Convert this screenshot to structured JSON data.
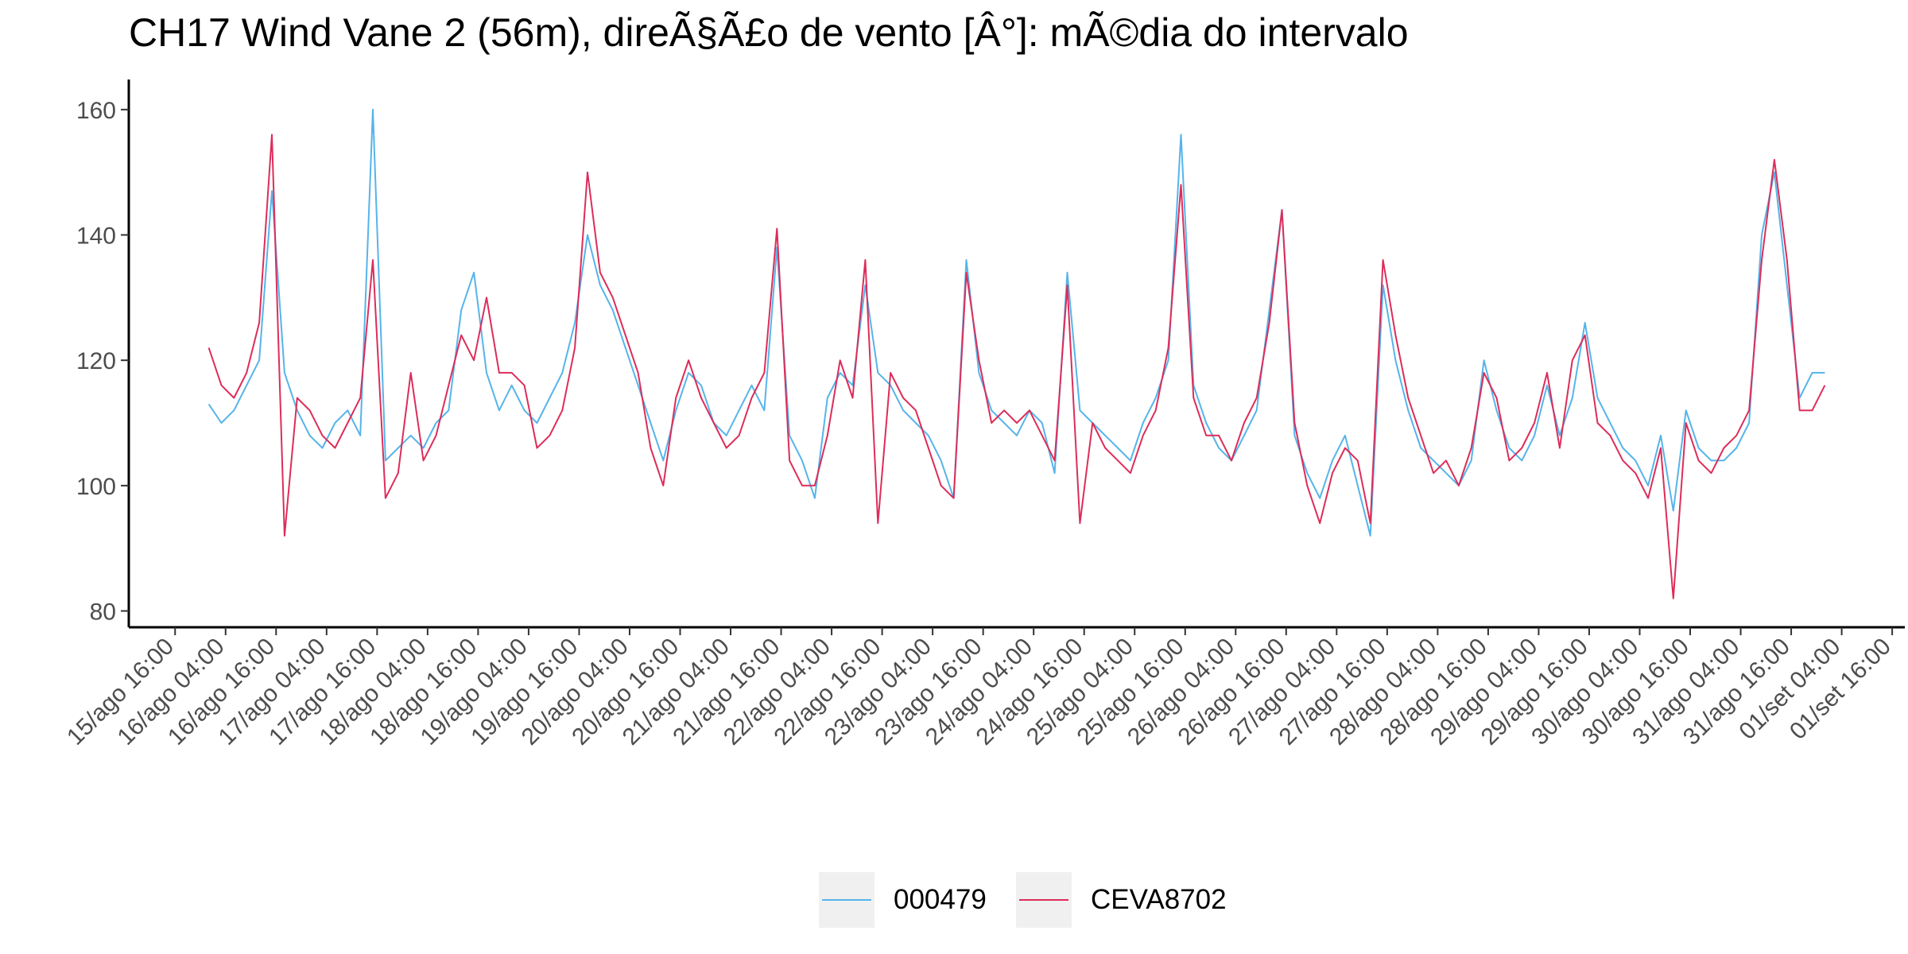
{
  "chart_data": {
    "type": "line",
    "title": "CH17 Wind Vane 2 (56m), direÃ§Ã£o de vento [Â°]: mÃ©dia do intervalo",
    "x": [
      "16/ago 00:00",
      "16/ago 03:00",
      "16/ago 06:00",
      "16/ago 09:00",
      "16/ago 12:00",
      "16/ago 15:00",
      "16/ago 18:00",
      "16/ago 21:00",
      "17/ago 00:00",
      "17/ago 03:00",
      "17/ago 06:00",
      "17/ago 09:00",
      "17/ago 12:00",
      "17/ago 15:00",
      "17/ago 18:00",
      "17/ago 21:00",
      "18/ago 00:00",
      "18/ago 03:00",
      "18/ago 06:00",
      "18/ago 09:00",
      "18/ago 12:00",
      "18/ago 15:00",
      "18/ago 18:00",
      "18/ago 21:00",
      "19/ago 00:00",
      "19/ago 03:00",
      "19/ago 06:00",
      "19/ago 09:00",
      "19/ago 12:00",
      "19/ago 15:00",
      "19/ago 18:00",
      "19/ago 21:00",
      "20/ago 00:00",
      "20/ago 03:00",
      "20/ago 06:00",
      "20/ago 09:00",
      "20/ago 12:00",
      "20/ago 15:00",
      "20/ago 18:00",
      "20/ago 21:00",
      "21/ago 00:00",
      "21/ago 03:00",
      "21/ago 06:00",
      "21/ago 09:00",
      "21/ago 12:00",
      "21/ago 15:00",
      "21/ago 18:00",
      "21/ago 21:00",
      "22/ago 00:00",
      "22/ago 03:00",
      "22/ago 06:00",
      "22/ago 09:00",
      "22/ago 12:00",
      "22/ago 15:00",
      "22/ago 18:00",
      "22/ago 21:00",
      "23/ago 00:00",
      "23/ago 03:00",
      "23/ago 06:00",
      "23/ago 09:00",
      "23/ago 12:00",
      "23/ago 15:00",
      "23/ago 18:00",
      "23/ago 21:00",
      "24/ago 00:00",
      "24/ago 03:00",
      "24/ago 06:00",
      "24/ago 09:00",
      "24/ago 12:00",
      "24/ago 15:00",
      "24/ago 18:00",
      "24/ago 21:00",
      "25/ago 00:00",
      "25/ago 03:00",
      "25/ago 06:00",
      "25/ago 09:00",
      "25/ago 12:00",
      "25/ago 15:00",
      "25/ago 18:00",
      "25/ago 21:00",
      "26/ago 00:00",
      "26/ago 03:00",
      "26/ago 06:00",
      "26/ago 09:00",
      "26/ago 12:00",
      "26/ago 15:00",
      "26/ago 18:00",
      "26/ago 21:00",
      "27/ago 00:00",
      "27/ago 03:00",
      "27/ago 06:00",
      "27/ago 09:00",
      "27/ago 12:00",
      "27/ago 15:00",
      "27/ago 18:00",
      "27/ago 21:00",
      "28/ago 00:00",
      "28/ago 03:00",
      "28/ago 06:00",
      "28/ago 09:00",
      "28/ago 12:00",
      "28/ago 15:00",
      "28/ago 18:00",
      "28/ago 21:00",
      "29/ago 00:00",
      "29/ago 03:00",
      "29/ago 06:00",
      "29/ago 09:00",
      "29/ago 12:00",
      "29/ago 15:00",
      "29/ago 18:00",
      "29/ago 21:00",
      "30/ago 00:00",
      "30/ago 03:00",
      "30/ago 06:00",
      "30/ago 09:00",
      "30/ago 12:00",
      "30/ago 15:00",
      "30/ago 18:00",
      "30/ago 21:00",
      "31/ago 00:00",
      "31/ago 03:00",
      "31/ago 06:00",
      "31/ago 09:00",
      "31/ago 12:00",
      "31/ago 15:00",
      "31/ago 18:00",
      "31/ago 21:00",
      "01/set 00:00"
    ],
    "series": [
      {
        "name": "000479",
        "color": "#56b4e9",
        "values": [
          113,
          110,
          112,
          116,
          120,
          147,
          118,
          112,
          108,
          106,
          110,
          112,
          108,
          160,
          104,
          106,
          108,
          106,
          110,
          112,
          128,
          134,
          118,
          112,
          116,
          112,
          110,
          114,
          118,
          126,
          140,
          132,
          128,
          122,
          116,
          110,
          104,
          112,
          118,
          116,
          110,
          108,
          112,
          116,
          112,
          138,
          108,
          104,
          98,
          114,
          118,
          116,
          132,
          118,
          116,
          112,
          110,
          108,
          104,
          98,
          136,
          118,
          112,
          110,
          108,
          112,
          110,
          102,
          134,
          112,
          110,
          108,
          106,
          104,
          110,
          114,
          120,
          156,
          116,
          110,
          106,
          104,
          108,
          112,
          128,
          144,
          108,
          102,
          98,
          104,
          108,
          100,
          92,
          132,
          120,
          112,
          106,
          104,
          102,
          100,
          104,
          120,
          112,
          106,
          104,
          108,
          116,
          108,
          114,
          126,
          114,
          110,
          106,
          104,
          100,
          108,
          96,
          112,
          106,
          104,
          104,
          106,
          110,
          140,
          150,
          132,
          114,
          118,
          118
        ]
      },
      {
        "name": "CEVA8702",
        "color": "#dc2d5a",
        "values": [
          122,
          116,
          114,
          118,
          126,
          156,
          92,
          114,
          112,
          108,
          106,
          110,
          114,
          136,
          98,
          102,
          118,
          104,
          108,
          116,
          124,
          120,
          130,
          118,
          118,
          116,
          106,
          108,
          112,
          122,
          150,
          134,
          130,
          124,
          118,
          106,
          100,
          114,
          120,
          114,
          110,
          106,
          108,
          114,
          118,
          141,
          104,
          100,
          100,
          108,
          120,
          114,
          136,
          94,
          118,
          114,
          112,
          106,
          100,
          98,
          134,
          120,
          110,
          112,
          110,
          112,
          108,
          104,
          132,
          94,
          110,
          106,
          104,
          102,
          108,
          112,
          122,
          148,
          114,
          108,
          108,
          104,
          110,
          114,
          126,
          144,
          110,
          100,
          94,
          102,
          106,
          104,
          94,
          136,
          124,
          114,
          108,
          102,
          104,
          100,
          106,
          118,
          114,
          104,
          106,
          110,
          118,
          106,
          120,
          124,
          110,
          108,
          104,
          102,
          98,
          106,
          82,
          110,
          104,
          102,
          106,
          108,
          112,
          136,
          152,
          136,
          112,
          112,
          116
        ]
      }
    ],
    "xlim": [
      "15/ago 05:00",
      "01/set 19:00"
    ],
    "xticks": [
      "15/ago 16:00",
      "16/ago 04:00",
      "16/ago 16:00",
      "17/ago 04:00",
      "17/ago 16:00",
      "18/ago 04:00",
      "18/ago 16:00",
      "19/ago 04:00",
      "19/ago 16:00",
      "20/ago 04:00",
      "20/ago 16:00",
      "21/ago 04:00",
      "21/ago 16:00",
      "22/ago 04:00",
      "22/ago 16:00",
      "23/ago 04:00",
      "23/ago 16:00",
      "24/ago 04:00",
      "24/ago 16:00",
      "25/ago 04:00",
      "25/ago 16:00",
      "26/ago 04:00",
      "26/ago 16:00",
      "27/ago 04:00",
      "27/ago 16:00",
      "28/ago 04:00",
      "28/ago 16:00",
      "29/ago 04:00",
      "29/ago 16:00",
      "30/ago 04:00",
      "30/ago 16:00",
      "31/ago 04:00",
      "31/ago 16:00",
      "01/set 04:00",
      "01/set 16:00"
    ],
    "ylim": [
      77.4,
      164.8
    ],
    "yticks": [
      80,
      100,
      120,
      140,
      160
    ],
    "legend": "bottom"
  }
}
